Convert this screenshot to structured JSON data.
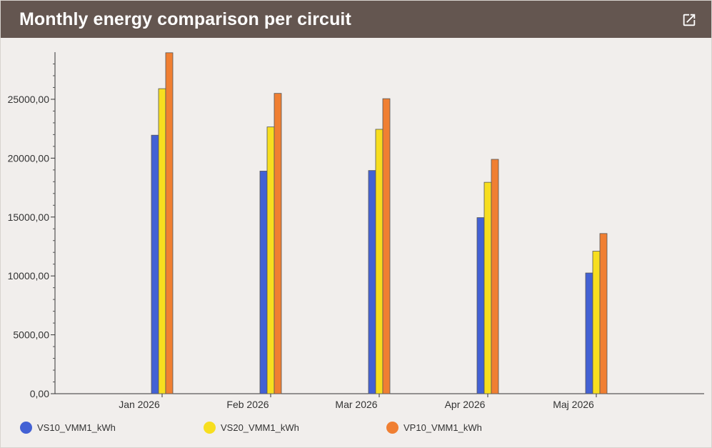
{
  "header": {
    "title": "Monthly energy comparison per circuit",
    "expand_icon": "external-link-icon"
  },
  "colors": {
    "header_bg": "#645650",
    "VS10": "#4361d4",
    "VS20": "#f7de1f",
    "VP10": "#f07f32"
  },
  "chart_data": {
    "type": "bar",
    "title": "Monthly energy comparison per circuit",
    "xlabel": "",
    "ylabel": "",
    "categories": [
      "Jan 2026",
      "Feb 2026",
      "Mar 2026",
      "Apr 2026",
      "Maj 2026"
    ],
    "series": [
      {
        "name": "VS10_VMM1_kWh",
        "color": "#4361d4",
        "values": [
          21950,
          18900,
          18950,
          14950,
          10250
        ]
      },
      {
        "name": "VS20_VMM1_kWh",
        "color": "#f7de1f",
        "values": [
          25900,
          22650,
          22450,
          17950,
          12100
        ]
      },
      {
        "name": "VP10_VMM1_kWh",
        "color": "#f07f32",
        "values": [
          28950,
          25500,
          25050,
          19900,
          13600
        ]
      }
    ],
    "yticks": [
      0,
      5000,
      10000,
      15000,
      20000,
      25000
    ],
    "ytick_labels": [
      "0,00",
      "5000,00",
      "10000,00",
      "15000,00",
      "20000,00",
      "25000,00"
    ],
    "ylim": [
      0,
      29000
    ],
    "grid": false,
    "legend_position": "bottom"
  }
}
